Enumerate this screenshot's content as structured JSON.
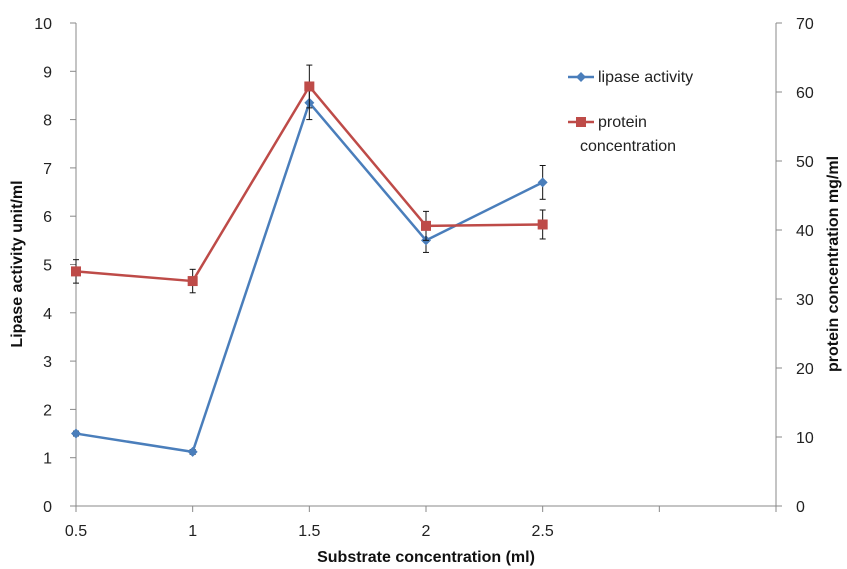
{
  "chart_data": {
    "type": "line",
    "x": [
      0.5,
      1,
      1.5,
      2,
      2.5
    ],
    "x_ticks": [
      "0.5",
      "1",
      "1.5",
      "2",
      "2.5",
      "",
      ""
    ],
    "xlabel": "Substrate concentration (ml)",
    "ylabel_left": "Lipase activity unit/ml",
    "ylabel_right": "protein concentration  mg/ml",
    "ylim_left": [
      0,
      10
    ],
    "ylim_right": [
      0,
      70
    ],
    "yticks_left": [
      "0",
      "1",
      "2",
      "3",
      "4",
      "5",
      "6",
      "7",
      "8",
      "9",
      "10"
    ],
    "yticks_right": [
      "0",
      "10",
      "20",
      "30",
      "40",
      "50",
      "60",
      "70"
    ],
    "grid": false,
    "legend_position": "top-right",
    "series": [
      {
        "name": "lipase activity",
        "axis": "left",
        "color": "#4a7ebb",
        "marker": "diamond",
        "values": [
          1.5,
          1.12,
          8.35,
          5.5,
          6.7
        ],
        "errors": [
          0.05,
          0.05,
          0.35,
          0.25,
          0.35
        ]
      },
      {
        "name": "protein\nconcentration",
        "axis": "right",
        "color": "#be4b48",
        "marker": "square",
        "values": [
          34,
          32.6,
          60.8,
          40.6,
          40.8
        ],
        "errors": [
          1.7,
          1.7,
          3.1,
          2.1,
          2.1
        ]
      }
    ]
  }
}
